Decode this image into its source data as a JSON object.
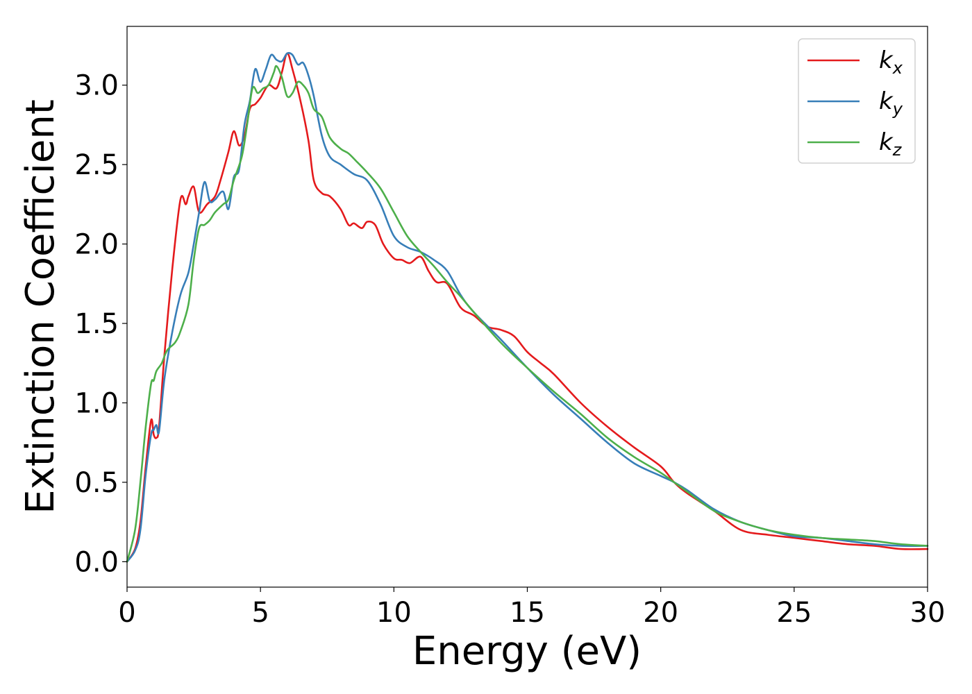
{
  "chart_data": {
    "type": "line",
    "title": "",
    "xlabel": "Energy (eV)",
    "ylabel": "Extinction Coefficient",
    "xlim": [
      0,
      30
    ],
    "ylim": [
      -0.16,
      3.37
    ],
    "xticks": [
      0,
      5,
      10,
      15,
      20,
      25,
      30
    ],
    "xtick_labels": [
      "0",
      "5",
      "10",
      "15",
      "20",
      "25",
      "30"
    ],
    "yticks": [
      0.0,
      0.5,
      1.0,
      1.5,
      2.0,
      2.5,
      3.0
    ],
    "ytick_labels": [
      "0.0",
      "0.5",
      "1.0",
      "1.5",
      "2.0",
      "2.5",
      "3.0"
    ],
    "grid": false,
    "legend_position": "top-right",
    "series": [
      {
        "name": "kx",
        "legend_base": "k",
        "legend_sub": "x",
        "color": "#e41a1c",
        "x": [
          0,
          0.3,
          0.5,
          0.7,
          0.9,
          1.0,
          1.1,
          1.2,
          1.4,
          1.7,
          2.0,
          2.2,
          2.3,
          2.5,
          2.7,
          3.0,
          3.3,
          3.5,
          3.8,
          4.0,
          4.2,
          4.4,
          4.6,
          4.8,
          5.0,
          5.3,
          5.6,
          5.8,
          6.0,
          6.2,
          6.5,
          6.8,
          7.0,
          7.3,
          7.6,
          8.0,
          8.3,
          8.5,
          8.8,
          9.0,
          9.3,
          9.6,
          10.0,
          10.3,
          10.6,
          11.0,
          11.3,
          11.6,
          12.0,
          12.5,
          13.0,
          13.5,
          14.0,
          14.5,
          15.0,
          15.5,
          16.0,
          17.0,
          18.0,
          19.0,
          20.0,
          20.5,
          21.0,
          22.0,
          23.0,
          24.0,
          25.0,
          26.0,
          27.0,
          28.0,
          29.0,
          30.0
        ],
        "values": [
          0.0,
          0.08,
          0.25,
          0.6,
          0.89,
          0.8,
          0.78,
          0.85,
          1.3,
          1.85,
          2.28,
          2.25,
          2.3,
          2.36,
          2.2,
          2.25,
          2.3,
          2.4,
          2.58,
          2.71,
          2.62,
          2.68,
          2.85,
          2.88,
          2.92,
          3.0,
          2.98,
          3.08,
          3.2,
          3.1,
          2.9,
          2.65,
          2.4,
          2.32,
          2.3,
          2.22,
          2.12,
          2.13,
          2.1,
          2.14,
          2.12,
          2.0,
          1.91,
          1.9,
          1.88,
          1.92,
          1.83,
          1.76,
          1.75,
          1.6,
          1.55,
          1.48,
          1.46,
          1.42,
          1.32,
          1.25,
          1.18,
          1.0,
          0.85,
          0.72,
          0.6,
          0.5,
          0.43,
          0.32,
          0.2,
          0.17,
          0.15,
          0.13,
          0.11,
          0.1,
          0.08,
          0.08
        ]
      },
      {
        "name": "ky",
        "legend_base": "k",
        "legend_sub": "y",
        "color": "#377eb8",
        "x": [
          0,
          0.3,
          0.5,
          0.7,
          0.9,
          1.0,
          1.1,
          1.2,
          1.4,
          1.7,
          2.0,
          2.3,
          2.5,
          2.7,
          2.9,
          3.1,
          3.3,
          3.6,
          3.8,
          4.0,
          4.2,
          4.4,
          4.6,
          4.8,
          5.0,
          5.2,
          5.4,
          5.6,
          5.8,
          6.0,
          6.2,
          6.4,
          6.6,
          6.8,
          7.0,
          7.3,
          7.6,
          8.0,
          8.5,
          9.0,
          9.5,
          10.0,
          10.5,
          11.0,
          11.5,
          12.0,
          12.5,
          13.0,
          14.0,
          15.0,
          16.0,
          17.0,
          18.0,
          19.0,
          20.0,
          20.5,
          21.0,
          22.0,
          23.0,
          24.0,
          25.0,
          26.0,
          27.0,
          28.0,
          29.0,
          30.0
        ],
        "values": [
          0.0,
          0.07,
          0.2,
          0.55,
          0.8,
          0.83,
          0.86,
          0.82,
          1.15,
          1.45,
          1.68,
          1.82,
          2.0,
          2.2,
          2.39,
          2.27,
          2.28,
          2.33,
          2.22,
          2.42,
          2.47,
          2.75,
          2.9,
          3.1,
          3.02,
          3.1,
          3.19,
          3.16,
          3.15,
          3.2,
          3.19,
          3.13,
          3.14,
          3.06,
          2.93,
          2.68,
          2.55,
          2.5,
          2.44,
          2.4,
          2.25,
          2.05,
          1.98,
          1.95,
          1.9,
          1.83,
          1.68,
          1.57,
          1.4,
          1.22,
          1.05,
          0.9,
          0.75,
          0.62,
          0.54,
          0.5,
          0.45,
          0.33,
          0.25,
          0.2,
          0.16,
          0.15,
          0.13,
          0.11,
          0.1,
          0.1
        ]
      },
      {
        "name": "kz",
        "legend_base": "k",
        "legend_sub": "z",
        "color": "#4daf4a",
        "x": [
          0,
          0.3,
          0.5,
          0.7,
          0.9,
          1.0,
          1.1,
          1.3,
          1.5,
          1.8,
          2.0,
          2.3,
          2.5,
          2.7,
          2.9,
          3.1,
          3.3,
          3.6,
          3.8,
          4.0,
          4.3,
          4.5,
          4.7,
          4.9,
          5.1,
          5.3,
          5.5,
          5.6,
          5.8,
          6.0,
          6.2,
          6.4,
          6.6,
          6.8,
          7.0,
          7.3,
          7.6,
          8.0,
          8.3,
          8.6,
          9.0,
          9.5,
          10.0,
          10.5,
          11.0,
          11.5,
          12.0,
          12.5,
          13.0,
          14.0,
          15.0,
          16.0,
          17.0,
          18.0,
          19.0,
          20.0,
          20.5,
          21.0,
          22.0,
          23.0,
          24.0,
          25.0,
          26.0,
          27.0,
          28.0,
          29.0,
          30.0
        ],
        "values": [
          0.0,
          0.2,
          0.5,
          0.85,
          1.12,
          1.14,
          1.2,
          1.25,
          1.33,
          1.38,
          1.45,
          1.62,
          1.9,
          2.1,
          2.12,
          2.15,
          2.2,
          2.25,
          2.28,
          2.4,
          2.55,
          2.75,
          2.98,
          2.95,
          2.98,
          3.0,
          3.08,
          3.12,
          3.05,
          2.93,
          2.95,
          3.02,
          3.0,
          2.95,
          2.85,
          2.8,
          2.67,
          2.6,
          2.57,
          2.52,
          2.45,
          2.35,
          2.2,
          2.05,
          1.95,
          1.86,
          1.76,
          1.67,
          1.57,
          1.38,
          1.22,
          1.07,
          0.93,
          0.78,
          0.66,
          0.56,
          0.5,
          0.44,
          0.32,
          0.25,
          0.2,
          0.17,
          0.15,
          0.14,
          0.13,
          0.11,
          0.1
        ]
      }
    ]
  }
}
